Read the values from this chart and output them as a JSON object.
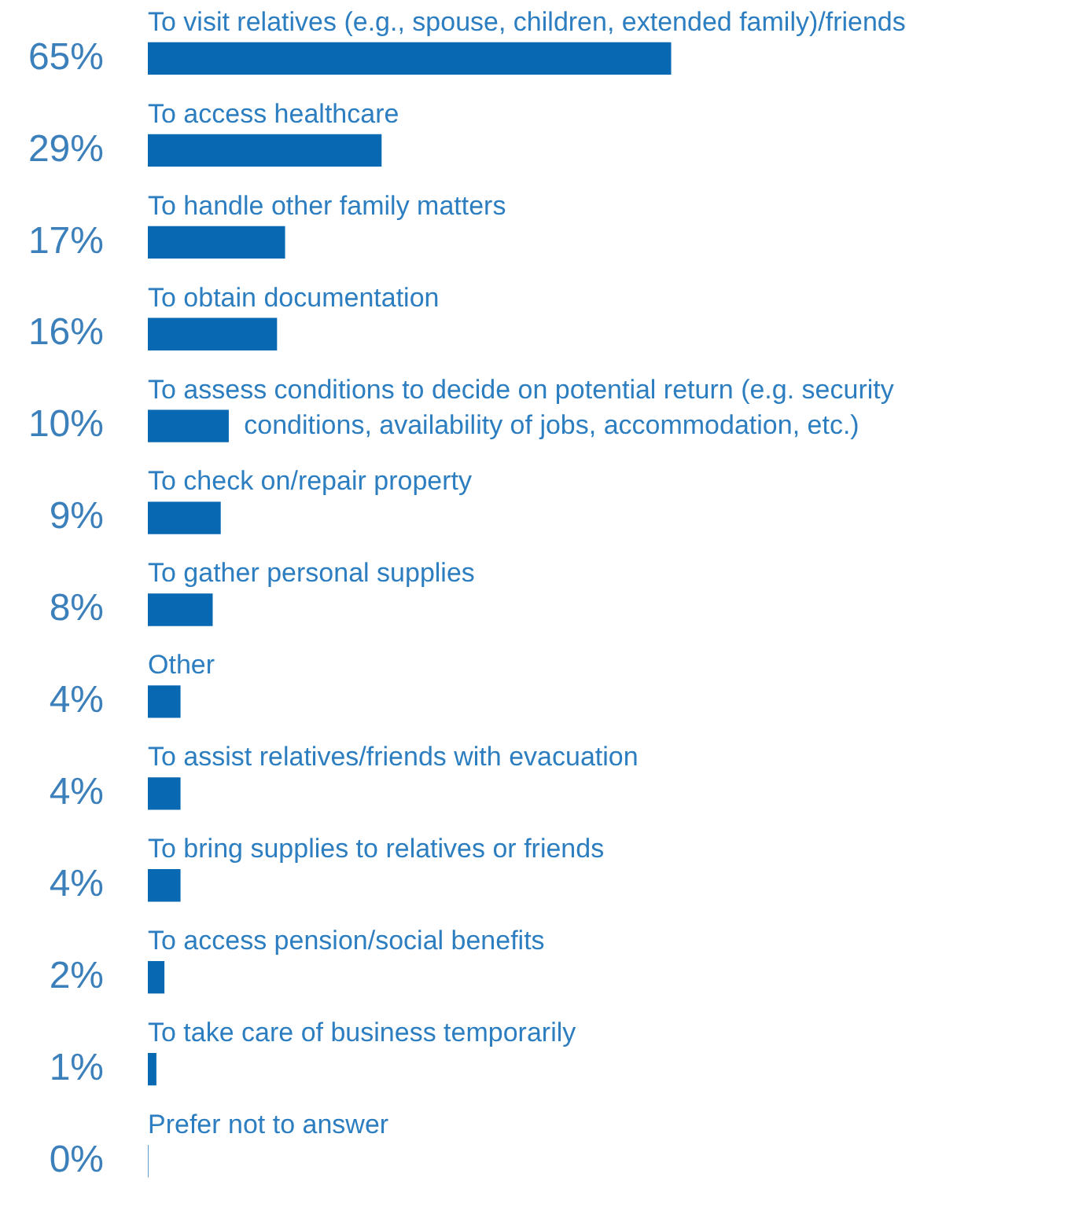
{
  "chart_data": {
    "type": "bar",
    "orientation": "horizontal",
    "categories": [
      "To visit relatives (e.g., spouse, children, extended family)/friends",
      "To access healthcare",
      "To handle other family matters",
      "To obtain documentation",
      "To assess conditions to decide on potential return (e.g. security conditions, availability of jobs, accommodation, etc.)",
      "To check on/repair property",
      "To gather personal supplies",
      "Other",
      "To assist relatives/friends with evacuation",
      "To bring supplies to relatives or friends",
      "To access pension/social benefits",
      "To take care of business temporarily",
      "Prefer not to answer"
    ],
    "values": [
      65,
      29,
      17,
      16,
      10,
      9,
      8,
      4,
      4,
      4,
      2,
      1,
      0
    ],
    "value_labels": [
      "65%",
      "29%",
      "17%",
      "16%",
      "10%",
      "9%",
      "8%",
      "4%",
      "4%",
      "4%",
      "2%",
      "1%",
      "0%"
    ],
    "color": "#0868b2"
  }
}
